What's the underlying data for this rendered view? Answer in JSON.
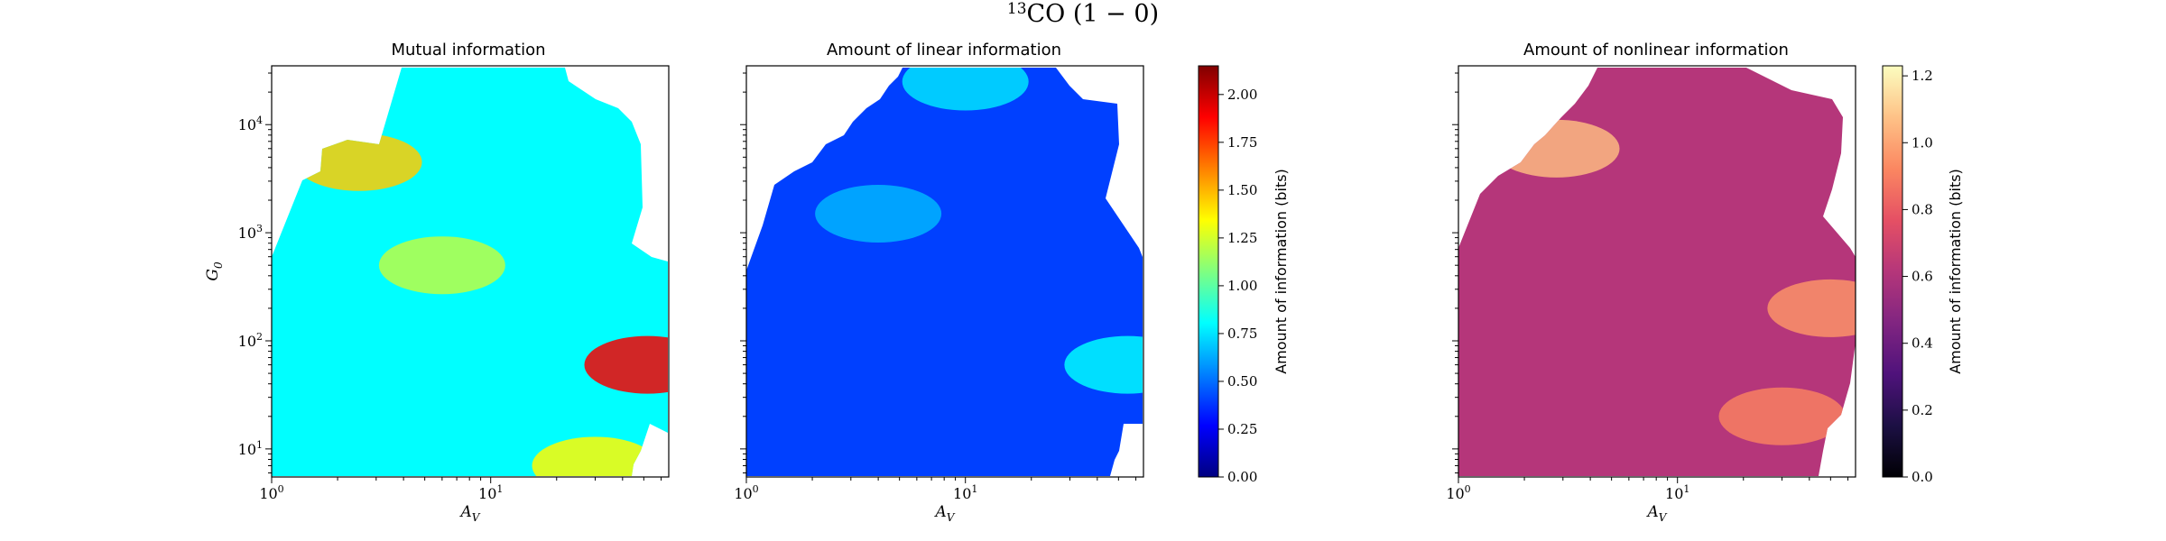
{
  "figure": {
    "suptitle": "CO (1 − 0)",
    "suptitle_superscript": "13"
  },
  "colors": {
    "jet": [
      "#000080",
      "#0000ff",
      "#0080ff",
      "#00ffff",
      "#80ff80",
      "#ffff00",
      "#ff8000",
      "#ff0000",
      "#800000"
    ],
    "magma": [
      "#000004",
      "#1c1044",
      "#4f127b",
      "#812581",
      "#b5367a",
      "#e55064",
      "#fb8761",
      "#fec287",
      "#fcfdbf"
    ],
    "background": "#ffffff",
    "axis": "#000000"
  },
  "chart_data": [
    {
      "type": "heatmap",
      "title": "Mutual information",
      "xlabel": "A",
      "xlabel_subscript": "V",
      "ylabel": "G",
      "ylabel_subscript": "0",
      "xscale": "log",
      "yscale": "log",
      "xlim": [
        1,
        65
      ],
      "ylim": [
        5.5,
        35000
      ],
      "xticks": [
        {
          "base": "10",
          "exp": "0"
        },
        {
          "base": "10",
          "exp": "1"
        }
      ],
      "yticks": [
        {
          "base": "10",
          "exp": "1"
        },
        {
          "base": "10",
          "exp": "2"
        },
        {
          "base": "10",
          "exp": "3"
        },
        {
          "base": "10",
          "exp": "4"
        }
      ],
      "colormap": "jet",
      "vmin": 0,
      "vmax": 2.15,
      "hotspots": [
        {
          "x": 52,
          "y": 60,
          "value": 1.9
        },
        {
          "x": 2.5,
          "y": 4500,
          "value": 1.45
        },
        {
          "x": 30,
          "y": 7,
          "value": 1.35
        },
        {
          "x": 6,
          "y": 500,
          "value": 1.2
        }
      ]
    },
    {
      "type": "heatmap",
      "title": "Amount of linear information",
      "xlabel": "A",
      "xlabel_subscript": "V",
      "xscale": "log",
      "yscale": "log",
      "xlim": [
        1,
        65
      ],
      "ylim": [
        5.5,
        35000
      ],
      "xticks": [
        {
          "base": "10",
          "exp": "0"
        },
        {
          "base": "10",
          "exp": "1"
        }
      ],
      "colormap": "jet",
      "vmin": 0,
      "vmax": 2.15,
      "colorbar": {
        "label": "Amount of information (bits)",
        "ticks": [
          "0.00",
          "0.25",
          "0.50",
          "0.75",
          "1.00",
          "1.25",
          "1.50",
          "1.75",
          "2.00"
        ],
        "tick_values": [
          0,
          0.25,
          0.5,
          0.75,
          1.0,
          1.25,
          1.5,
          1.75,
          2.0
        ]
      },
      "hotspots": [
        {
          "x": 55,
          "y": 60,
          "value": 0.8
        },
        {
          "x": 10,
          "y": 25000,
          "value": 0.75
        },
        {
          "x": 4,
          "y": 1500,
          "value": 0.65
        }
      ]
    },
    {
      "type": "heatmap",
      "title": "Amount of nonlinear information",
      "xlabel": "A",
      "xlabel_subscript": "V",
      "xscale": "log",
      "yscale": "log",
      "xlim": [
        1,
        65
      ],
      "ylim": [
        5.5,
        35000
      ],
      "xticks": [
        {
          "base": "10",
          "exp": "0"
        },
        {
          "base": "10",
          "exp": "1"
        }
      ],
      "colormap": "magma",
      "vmin": 0,
      "vmax": 1.23,
      "colorbar": {
        "label": "Amount of information (bits)",
        "ticks": [
          "0.0",
          "0.2",
          "0.4",
          "0.6",
          "0.8",
          "1.0",
          "1.2"
        ],
        "tick_values": [
          0,
          0.2,
          0.4,
          0.6,
          0.8,
          1.0,
          1.2
        ]
      },
      "hotspots": [
        {
          "x": 2.8,
          "y": 6000,
          "value": 1.05
        },
        {
          "x": 50,
          "y": 200,
          "value": 0.95
        },
        {
          "x": 30,
          "y": 20,
          "value": 0.9
        }
      ]
    }
  ]
}
